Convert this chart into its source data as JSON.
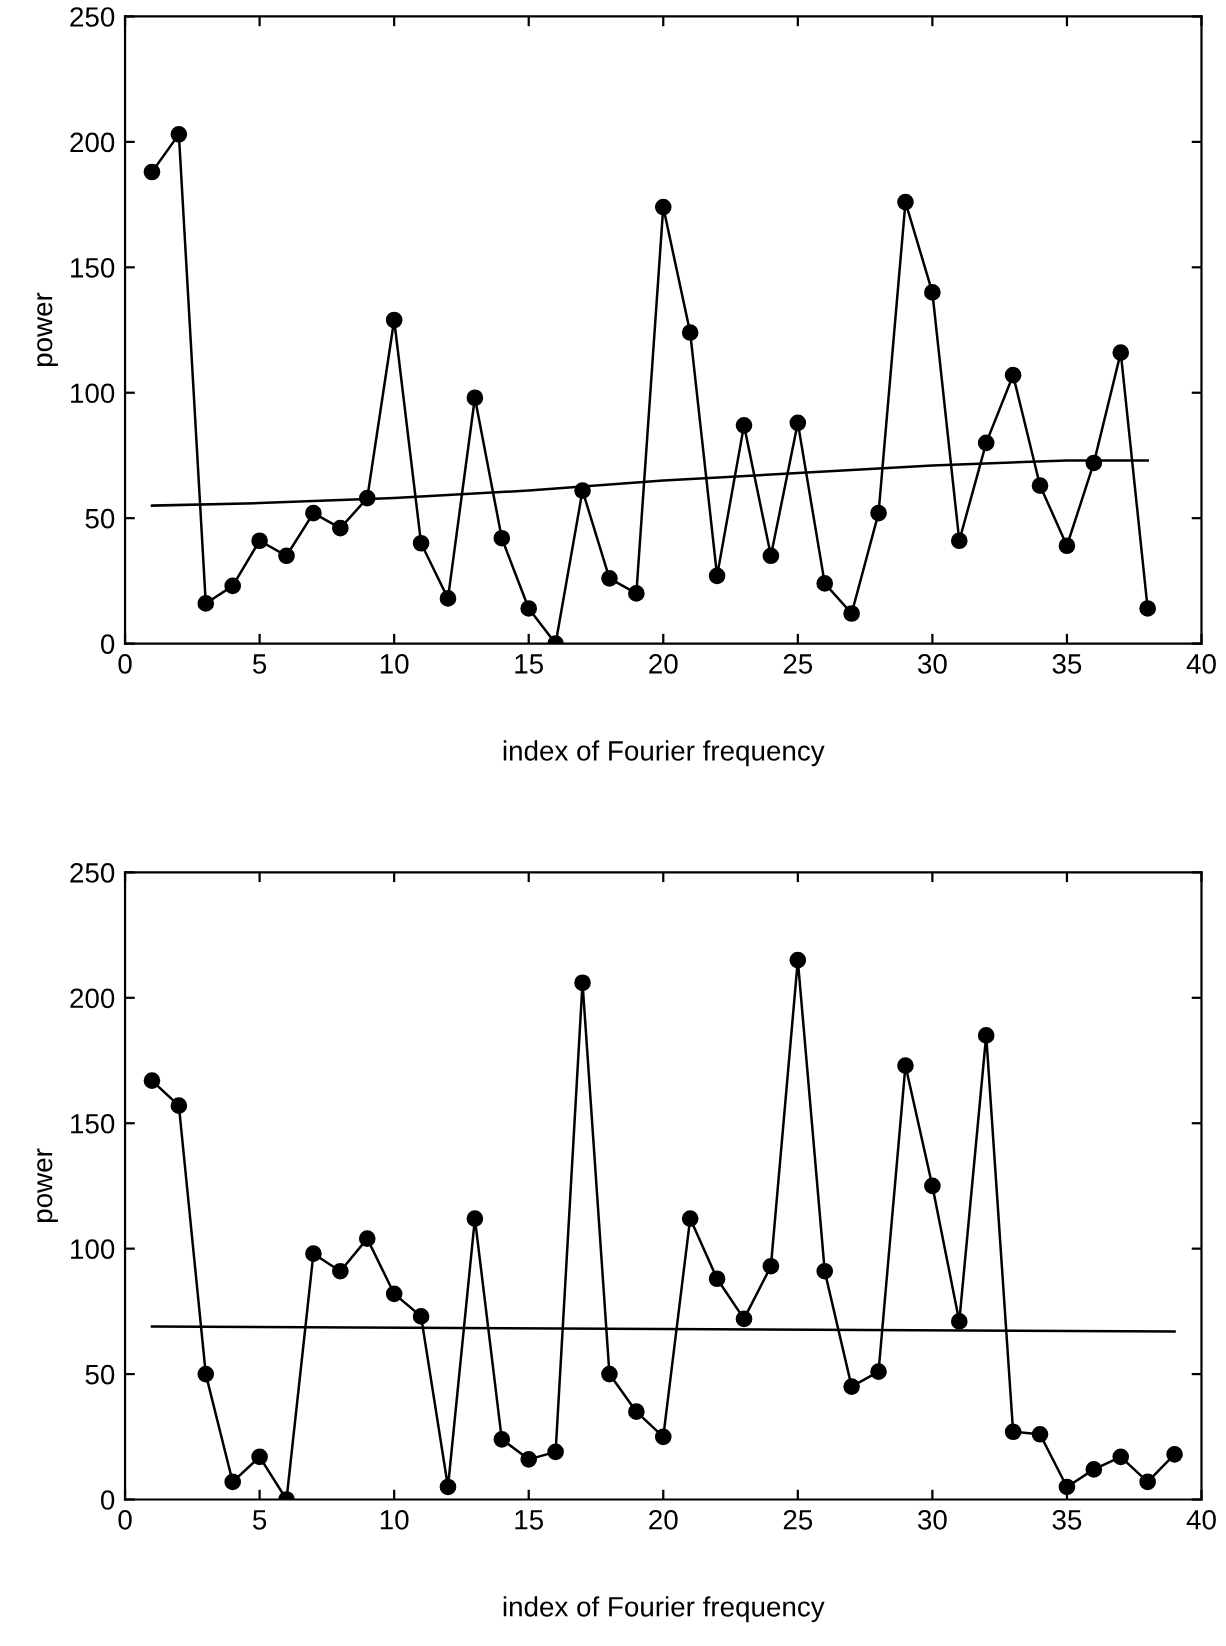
{
  "chart_data": [
    {
      "type": "line",
      "xlabel": "index of Fourier frequency",
      "ylabel": "power",
      "xlim": [
        0,
        40
      ],
      "ylim": [
        0,
        250
      ],
      "xticks": [
        0,
        5,
        10,
        15,
        20,
        25,
        30,
        35,
        40
      ],
      "yticks": [
        0,
        50,
        100,
        150,
        200,
        250
      ],
      "grid": false,
      "legend": false,
      "series": [
        {
          "color": "#000000",
          "marker": "circle",
          "x": [
            1,
            2,
            3,
            4,
            5,
            6,
            7,
            8,
            9,
            10,
            11,
            12,
            13,
            14,
            15,
            16,
            17,
            18,
            19,
            20,
            21,
            22,
            23,
            24,
            25,
            26,
            27,
            28,
            29,
            30,
            31,
            32,
            33,
            34,
            35,
            36,
            37,
            38
          ],
          "values": [
            188,
            203,
            16,
            23,
            41,
            35,
            52,
            46,
            58,
            129,
            40,
            18,
            98,
            42,
            14,
            0,
            61,
            26,
            20,
            174,
            124,
            27,
            87,
            35,
            88,
            24,
            12,
            52,
            176,
            140,
            41,
            80,
            107,
            63,
            39,
            72,
            116,
            14
          ]
        },
        {
          "color": "#000000",
          "marker": "none",
          "x": [
            1,
            5,
            10,
            15,
            20,
            25,
            30,
            35,
            38
          ],
          "values": [
            55,
            56,
            58,
            61,
            65,
            68,
            71,
            73,
            73
          ]
        }
      ]
    },
    {
      "type": "line",
      "xlabel": "index of Fourier frequency",
      "ylabel": "power",
      "xlim": [
        0,
        40
      ],
      "ylim": [
        0,
        250
      ],
      "xticks": [
        0,
        5,
        10,
        15,
        20,
        25,
        30,
        35,
        40
      ],
      "yticks": [
        0,
        50,
        100,
        150,
        200,
        250
      ],
      "grid": false,
      "legend": false,
      "series": [
        {
          "color": "#000000",
          "marker": "circle",
          "x": [
            1,
            2,
            3,
            4,
            5,
            6,
            7,
            8,
            9,
            10,
            11,
            12,
            13,
            14,
            15,
            16,
            17,
            18,
            19,
            20,
            21,
            22,
            23,
            24,
            25,
            26,
            27,
            28,
            29,
            30,
            31,
            32,
            33,
            34,
            35,
            36,
            37,
            38,
            39
          ],
          "values": [
            167,
            157,
            50,
            7,
            17,
            0,
            98,
            91,
            104,
            82,
            73,
            5,
            112,
            24,
            16,
            19,
            206,
            50,
            35,
            25,
            112,
            88,
            72,
            93,
            215,
            91,
            45,
            51,
            173,
            125,
            71,
            185,
            27,
            26,
            5,
            12,
            17,
            7,
            18
          ]
        },
        {
          "color": "#000000",
          "marker": "none",
          "x": [
            1,
            39
          ],
          "values": [
            69,
            67
          ]
        }
      ]
    }
  ]
}
